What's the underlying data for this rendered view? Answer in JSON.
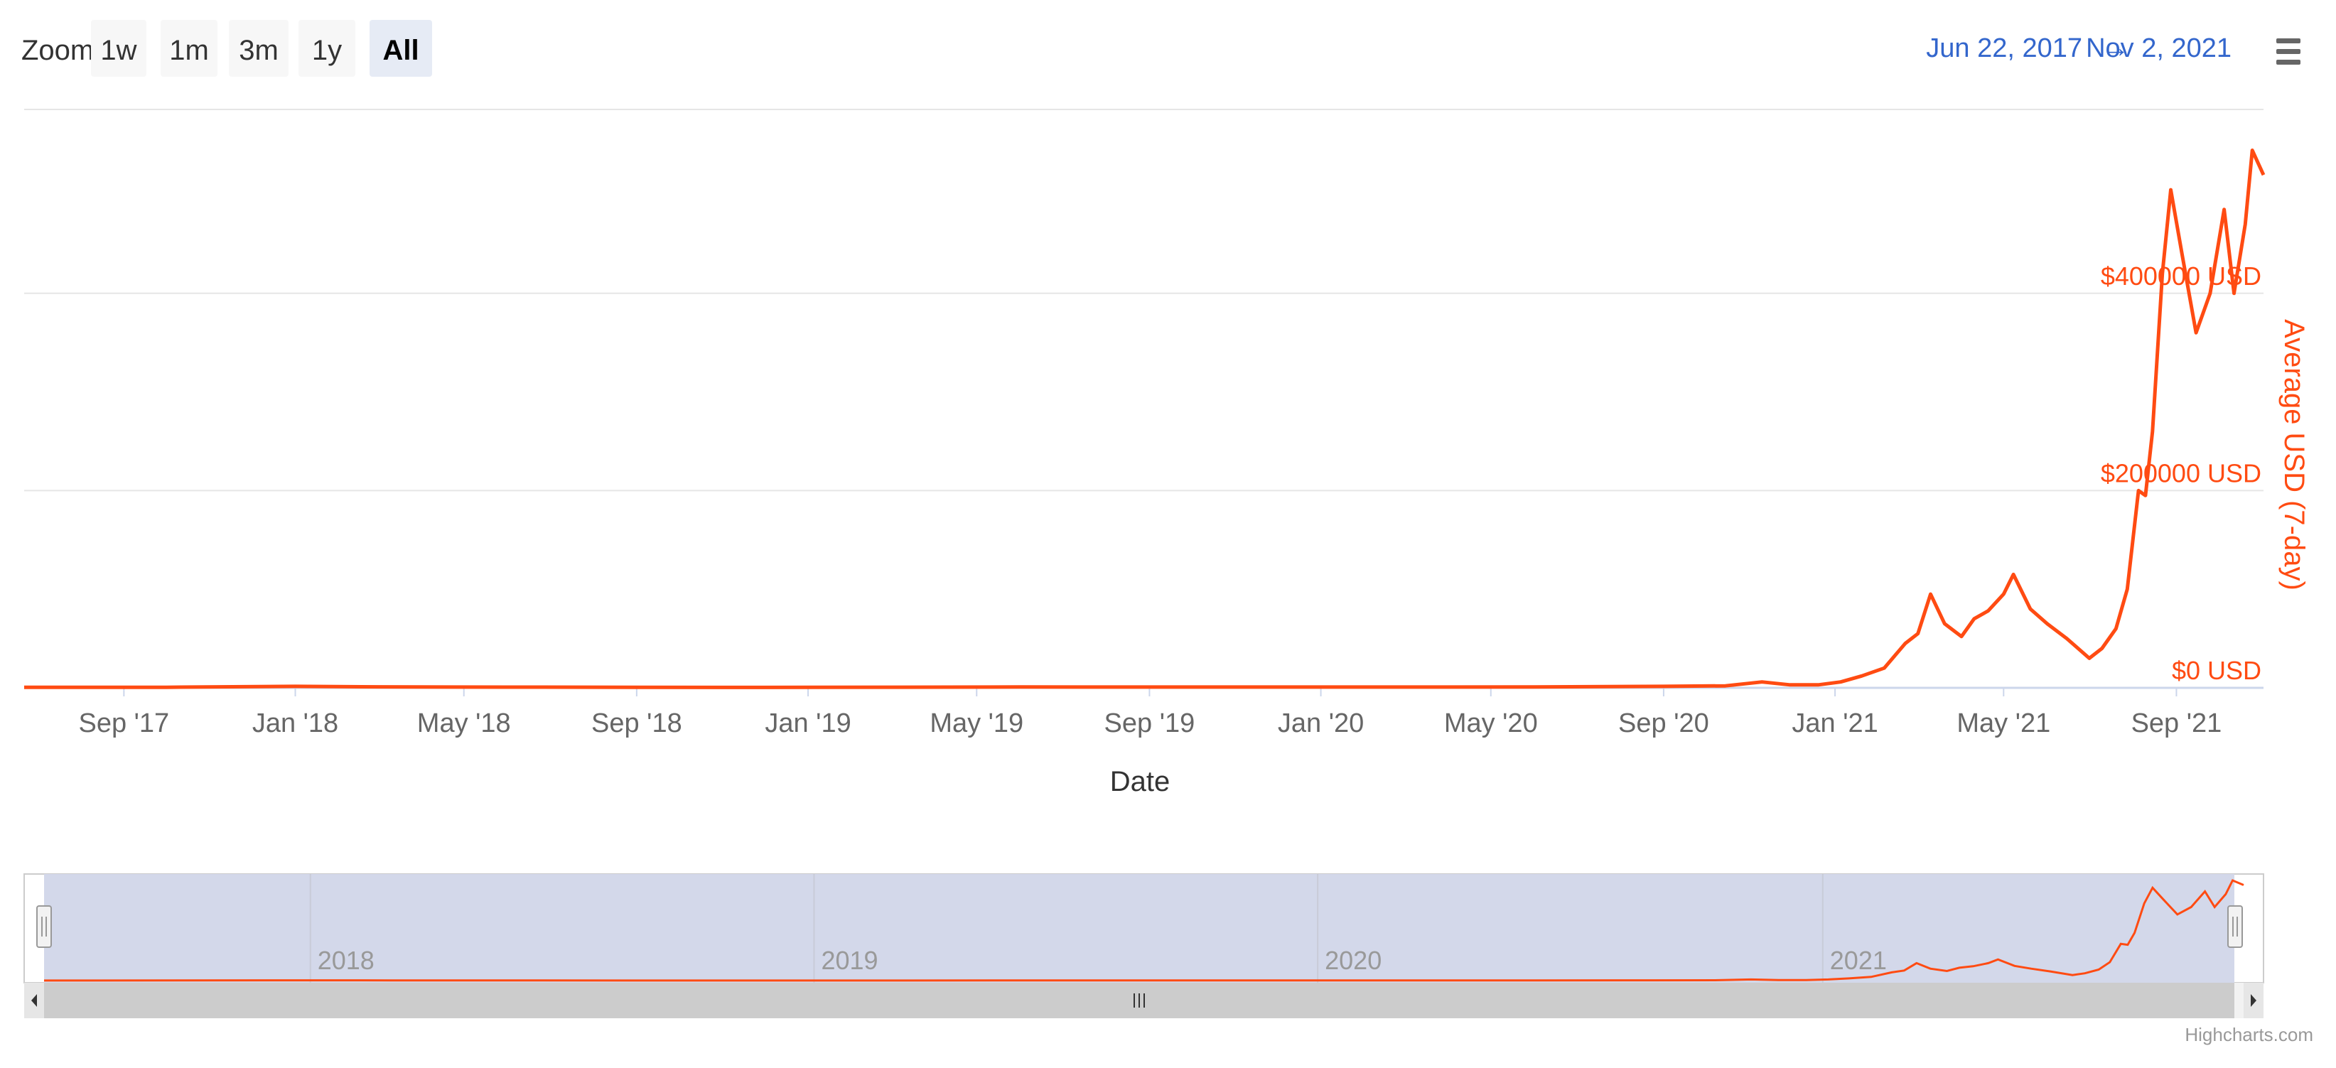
{
  "toolbar": {
    "zoom_label": "Zoom",
    "zoom_buttons": [
      "1w",
      "1m",
      "3m",
      "1y",
      "All"
    ],
    "active_zoom": "All",
    "range_from": "Jun 22, 2017",
    "range_arrow": "→",
    "range_to": "Nov 2, 2021",
    "menu_icon": "hamburger-menu-icon"
  },
  "colors": {
    "series": "#ff4b12",
    "axis_label": "#666666",
    "range_text": "#3366cc",
    "navigator_mask": "#d3d8ea",
    "scrollbar": "#cccccc"
  },
  "chart_data": {
    "type": "line",
    "xlabel": "Date",
    "ylabel": "Average USD (7-day)",
    "ylim": [
      0,
      500000
    ],
    "y_ticks": [
      0,
      200000,
      400000
    ],
    "y_tick_labels": [
      "$0 USD",
      "$200000 USD",
      "$400000 USD"
    ],
    "x_tick_labels": [
      "Sep '17",
      "Jan '18",
      "May '18",
      "Sep '18",
      "Jan '19",
      "May '19",
      "Sep '19",
      "Jan '20",
      "May '20",
      "Sep '20",
      "Jan '21",
      "May '21",
      "Sep '21"
    ],
    "x_ticks": [
      "2017-09-01",
      "2018-01-01",
      "2018-05-01",
      "2018-09-01",
      "2019-01-01",
      "2019-05-01",
      "2019-09-01",
      "2020-01-01",
      "2020-05-01",
      "2020-09-01",
      "2021-01-01",
      "2021-05-01",
      "2021-09-01"
    ],
    "x_range": [
      "2017-06-22",
      "2021-11-02"
    ],
    "grid": true,
    "legend": "none",
    "navigator_labels": [
      "2018",
      "2019",
      "2020",
      "2021"
    ],
    "navigator_ticks": [
      "2018-01-01",
      "2019-01-01",
      "2020-01-01",
      "2021-01-01"
    ],
    "series": [
      {
        "points": [
          [
            "2017-06-22",
            500
          ],
          [
            "2017-10-01",
            600
          ],
          [
            "2018-01-01",
            1500
          ],
          [
            "2018-03-01",
            1000
          ],
          [
            "2018-06-01",
            700
          ],
          [
            "2018-12-01",
            400
          ],
          [
            "2019-06-01",
            900
          ],
          [
            "2019-12-01",
            800
          ],
          [
            "2020-06-01",
            900
          ],
          [
            "2020-09-01",
            1500
          ],
          [
            "2020-10-15",
            2000
          ],
          [
            "2020-11-10",
            6000
          ],
          [
            "2020-11-30",
            3000
          ],
          [
            "2020-12-20",
            3000
          ],
          [
            "2021-01-05",
            6000
          ],
          [
            "2021-01-20",
            12000
          ],
          [
            "2021-02-05",
            20000
          ],
          [
            "2021-02-20",
            45000
          ],
          [
            "2021-03-01",
            55000
          ],
          [
            "2021-03-10",
            95000
          ],
          [
            "2021-03-20",
            65000
          ],
          [
            "2021-04-01",
            52000
          ],
          [
            "2021-04-10",
            70000
          ],
          [
            "2021-04-20",
            78000
          ],
          [
            "2021-05-01",
            95000
          ],
          [
            "2021-05-08",
            115000
          ],
          [
            "2021-05-20",
            80000
          ],
          [
            "2021-06-01",
            65000
          ],
          [
            "2021-06-15",
            50000
          ],
          [
            "2021-07-01",
            30000
          ],
          [
            "2021-07-10",
            40000
          ],
          [
            "2021-07-20",
            60000
          ],
          [
            "2021-07-28",
            100000
          ],
          [
            "2021-08-05",
            200000
          ],
          [
            "2021-08-10",
            195000
          ],
          [
            "2021-08-15",
            260000
          ],
          [
            "2021-08-22",
            420000
          ],
          [
            "2021-08-28",
            505000
          ],
          [
            "2021-09-05",
            440000
          ],
          [
            "2021-09-15",
            360000
          ],
          [
            "2021-09-25",
            400000
          ],
          [
            "2021-10-05",
            485000
          ],
          [
            "2021-10-12",
            400000
          ],
          [
            "2021-10-20",
            470000
          ],
          [
            "2021-10-25",
            545000
          ],
          [
            "2021-11-02",
            520000
          ]
        ]
      }
    ]
  },
  "credits": "Highcharts.com"
}
